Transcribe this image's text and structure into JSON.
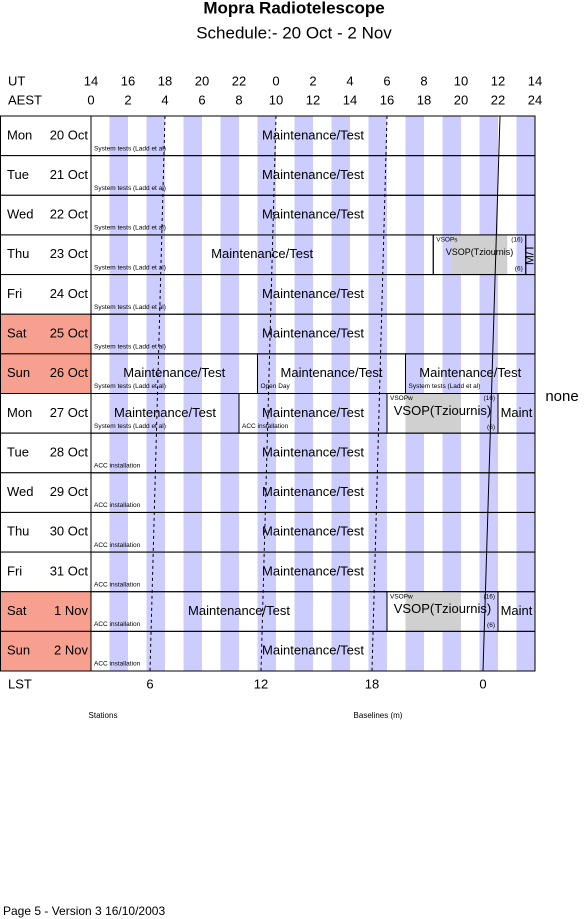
{
  "header": {
    "title": "Mopra Radiotelescope",
    "subtitle": "Schedule:- 20 Oct - 2  Nov"
  },
  "axes": {
    "ut_label": "UT",
    "ut_ticks": [
      14,
      16,
      18,
      20,
      22,
      0,
      2,
      4,
      6,
      8,
      10,
      12,
      14
    ],
    "aest_label": "AEST",
    "aest_ticks": [
      0,
      2,
      4,
      6,
      8,
      10,
      12,
      14,
      16,
      18,
      20,
      22,
      24
    ],
    "lst_label": "LST",
    "lst_ticks": [
      6,
      12,
      18,
      0
    ]
  },
  "rows": [
    {
      "day": "Mon",
      "date": "20 Oct",
      "blocks": [
        {
          "label": "Maintenance/Test",
          "note": "System tests (Ladd et al)"
        }
      ]
    },
    {
      "day": "Tue",
      "date": "21 Oct",
      "blocks": [
        {
          "label": "Maintenance/Test",
          "note": "System tests (Ladd et al)"
        }
      ]
    },
    {
      "day": "Wed",
      "date": "22 Oct",
      "blocks": [
        {
          "label": "Maintenance/Test",
          "note": "System tests (Ladd et al)"
        }
      ]
    },
    {
      "day": "Thu",
      "date": "23 Oct",
      "blocks": [
        {
          "label": "Maintenance/Test",
          "note": "System tests (Ladd et al)"
        },
        {
          "tag": "VSOPs",
          "count_top": "(16)",
          "label": "VSOP(Tziournis)",
          "count_bottom": "(6)"
        },
        {
          "label": "M/T"
        }
      ]
    },
    {
      "day": "Fri",
      "date": "24 Oct",
      "blocks": [
        {
          "label": "Maintenance/Test",
          "note": "System tests (Ladd et al)"
        }
      ]
    },
    {
      "day": "Sat",
      "date": "25 Oct",
      "blocks": [
        {
          "label": "Maintenance/Test",
          "note": "System tests (Ladd et al)"
        }
      ]
    },
    {
      "day": "Sun",
      "date": "26 Oct",
      "blocks": [
        {
          "label": "Maintenance/Test",
          "note": "System tests (Ladd et al)"
        },
        {
          "label": "Maintenance/Test",
          "note": "Open Day"
        },
        {
          "label": "Maintenance/Test",
          "note": "System tests (Ladd et al)"
        }
      ]
    },
    {
      "day": "Mon",
      "date": "27 Oct",
      "blocks": [
        {
          "label": "Maintenance/Test",
          "note": "System tests (Ladd et al)"
        },
        {
          "label": "Maintenance/Test",
          "note": "ACC installation"
        },
        {
          "tag": "VSOPw",
          "count_top": "(16)",
          "label": "VSOP(Tziournis)",
          "count_bottom": "(6)"
        },
        {
          "label": "Maint"
        }
      ]
    },
    {
      "day": "Tue",
      "date": "28 Oct",
      "blocks": [
        {
          "label": "Maintenance/Test",
          "note": "ACC installation"
        }
      ]
    },
    {
      "day": "Wed",
      "date": "29 Oct",
      "blocks": [
        {
          "label": "Maintenance/Test",
          "note": "ACC installation"
        }
      ]
    },
    {
      "day": "Thu",
      "date": "30 Oct",
      "blocks": [
        {
          "label": "Maintenance/Test",
          "note": "ACC installation"
        }
      ]
    },
    {
      "day": "Fri",
      "date": "31 Oct",
      "blocks": [
        {
          "label": "Maintenance/Test",
          "note": "ACC installation"
        }
      ]
    },
    {
      "day": "Sat",
      "date": "1 Nov",
      "blocks": [
        {
          "label": "Maintenance/Test",
          "note": "ACC installation"
        },
        {
          "tag": "VSOPw",
          "count_top": "(16)",
          "label": "VSOP(Tziournis)",
          "count_bottom": "(6)"
        },
        {
          "label": "Maint"
        }
      ]
    },
    {
      "day": "Sun",
      "date": "2 Nov",
      "blocks": [
        {
          "label": "Maintenance/Test",
          "note": "ACC installation"
        }
      ]
    }
  ],
  "side_note": "none",
  "stations_label": "Stations",
  "baselines_label": "Baselines (m)",
  "footer": "Page 5 - Version 3  16/10/2003"
}
